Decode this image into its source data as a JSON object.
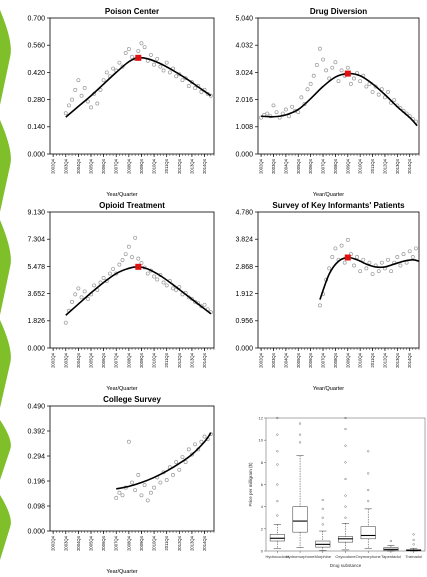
{
  "colors": {
    "point": "#9a9a9a",
    "curve": "#000000",
    "peak": "#e01010",
    "left_bar": "#7fbf2a",
    "box_fill": "#ffffff"
  },
  "x_ticks": [
    "2002Q4",
    "2003Q4",
    "2004Q4",
    "2005Q4",
    "2006Q4",
    "2007Q4",
    "2008Q4",
    "2009Q4",
    "2010Q4",
    "2011Q4",
    "2012Q4",
    "2013Q4",
    "2014Q4",
    "2015Q4"
  ],
  "chart_data": [
    {
      "id": "poison",
      "type": "scatter",
      "title": "Poison Center",
      "xlabel": "Year/Quarter",
      "yticks": [
        "0.000",
        "0.140",
        "0.280",
        "0.420",
        "0.560",
        "0.700"
      ],
      "ylim": [
        0,
        0.7
      ],
      "x_range": [
        2002.75,
        2015.75
      ],
      "points": [
        [
          2004.0,
          0.21
        ],
        [
          2004.25,
          0.25
        ],
        [
          2004.5,
          0.28
        ],
        [
          2004.75,
          0.33
        ],
        [
          2005.0,
          0.38
        ],
        [
          2005.25,
          0.3
        ],
        [
          2005.5,
          0.34
        ],
        [
          2005.75,
          0.27
        ],
        [
          2006.0,
          0.24
        ],
        [
          2006.25,
          0.31
        ],
        [
          2006.5,
          0.26
        ],
        [
          2006.75,
          0.33
        ],
        [
          2007.0,
          0.38
        ],
        [
          2007.25,
          0.42
        ],
        [
          2007.5,
          0.4
        ],
        [
          2007.75,
          0.44
        ],
        [
          2008.0,
          0.43
        ],
        [
          2008.25,
          0.47
        ],
        [
          2008.5,
          0.45
        ],
        [
          2008.75,
          0.52
        ],
        [
          2009.0,
          0.54
        ],
        [
          2009.25,
          0.5
        ],
        [
          2009.5,
          0.49
        ],
        [
          2009.75,
          0.53
        ],
        [
          2010.0,
          0.57
        ],
        [
          2010.25,
          0.55
        ],
        [
          2010.5,
          0.48
        ],
        [
          2010.75,
          0.51
        ],
        [
          2011.0,
          0.46
        ],
        [
          2011.25,
          0.49
        ],
        [
          2011.5,
          0.45
        ],
        [
          2011.75,
          0.43
        ],
        [
          2012.0,
          0.47
        ],
        [
          2012.25,
          0.42
        ],
        [
          2012.5,
          0.44
        ],
        [
          2012.75,
          0.4
        ],
        [
          2013.0,
          0.41
        ],
        [
          2013.25,
          0.38
        ],
        [
          2013.5,
          0.39
        ],
        [
          2013.75,
          0.35
        ],
        [
          2014.0,
          0.37
        ],
        [
          2014.25,
          0.34
        ],
        [
          2014.5,
          0.35
        ],
        [
          2014.75,
          0.32
        ],
        [
          2015.0,
          0.33
        ],
        [
          2015.25,
          0.31
        ],
        [
          2015.5,
          0.3
        ]
      ],
      "fit": [
        [
          2004.0,
          0.19
        ],
        [
          2005.0,
          0.245
        ],
        [
          2006.0,
          0.3
        ],
        [
          2007.0,
          0.36
        ],
        [
          2008.0,
          0.42
        ],
        [
          2009.0,
          0.475
        ],
        [
          2009.75,
          0.495
        ],
        [
          2010.5,
          0.49
        ],
        [
          2011.5,
          0.465
        ],
        [
          2012.5,
          0.43
        ],
        [
          2013.5,
          0.39
        ],
        [
          2014.5,
          0.345
        ],
        [
          2015.5,
          0.3
        ]
      ],
      "peak": [
        2009.75,
        0.495
      ]
    },
    {
      "id": "diversion",
      "type": "scatter",
      "title": "Drug Diversion",
      "xlabel": "Year/Quarter",
      "yticks": [
        "0.000",
        "1.008",
        "2.016",
        "3.024",
        "4.032",
        "5.040"
      ],
      "ylim": [
        0,
        5.04
      ],
      "x_range": [
        2002.75,
        2015.75
      ],
      "points": [
        [
          2003.0,
          1.35
        ],
        [
          2003.25,
          1.45
        ],
        [
          2003.5,
          1.5
        ],
        [
          2003.75,
          1.4
        ],
        [
          2004.0,
          1.8
        ],
        [
          2004.25,
          1.55
        ],
        [
          2004.5,
          1.35
        ],
        [
          2004.75,
          1.5
        ],
        [
          2005.0,
          1.65
        ],
        [
          2005.25,
          1.4
        ],
        [
          2005.5,
          1.75
        ],
        [
          2005.75,
          1.6
        ],
        [
          2006.0,
          1.55
        ],
        [
          2006.25,
          2.1
        ],
        [
          2006.5,
          1.85
        ],
        [
          2006.75,
          2.4
        ],
        [
          2007.0,
          2.6
        ],
        [
          2007.25,
          2.9
        ],
        [
          2007.5,
          3.3
        ],
        [
          2007.75,
          3.9
        ],
        [
          2008.0,
          3.5
        ],
        [
          2008.25,
          3.1
        ],
        [
          2008.5,
          2.8
        ],
        [
          2008.75,
          3.2
        ],
        [
          2009.0,
          3.4
        ],
        [
          2009.25,
          2.7
        ],
        [
          2009.5,
          3.1
        ],
        [
          2009.75,
          2.9
        ],
        [
          2010.0,
          3.2
        ],
        [
          2010.25,
          2.6
        ],
        [
          2010.5,
          2.8
        ],
        [
          2010.75,
          3.0
        ],
        [
          2011.0,
          2.7
        ],
        [
          2011.25,
          2.9
        ],
        [
          2011.5,
          2.5
        ],
        [
          2011.75,
          2.6
        ],
        [
          2012.0,
          2.3
        ],
        [
          2012.25,
          2.5
        ],
        [
          2012.5,
          2.2
        ],
        [
          2012.75,
          2.4
        ],
        [
          2013.0,
          2.1
        ],
        [
          2013.25,
          2.3
        ],
        [
          2013.5,
          1.9
        ],
        [
          2013.75,
          2.0
        ],
        [
          2014.0,
          1.8
        ],
        [
          2014.25,
          1.7
        ],
        [
          2014.5,
          1.6
        ],
        [
          2014.75,
          1.5
        ],
        [
          2015.0,
          1.4
        ],
        [
          2015.25,
          1.3
        ],
        [
          2015.5,
          1.2
        ]
      ],
      "fit": [
        [
          2003.0,
          1.4
        ],
        [
          2004.0,
          1.38
        ],
        [
          2005.0,
          1.45
        ],
        [
          2006.0,
          1.65
        ],
        [
          2007.0,
          2.05
        ],
        [
          2008.0,
          2.5
        ],
        [
          2009.0,
          2.85
        ],
        [
          2010.0,
          2.98
        ],
        [
          2011.0,
          2.9
        ],
        [
          2012.0,
          2.6
        ],
        [
          2013.0,
          2.2
        ],
        [
          2014.0,
          1.75
        ],
        [
          2015.0,
          1.35
        ],
        [
          2015.6,
          1.05
        ]
      ],
      "peak": [
        2010.0,
        2.98
      ]
    },
    {
      "id": "opioid",
      "type": "scatter",
      "title": "Opioid Treatment",
      "xlabel": "Year/Quarter",
      "yticks": [
        "0.000",
        "1.826",
        "3.652",
        "5.478",
        "7.304",
        "9.130"
      ],
      "ylim": [
        0,
        9.13
      ],
      "x_range": [
        2002.75,
        2015.75
      ],
      "points": [
        [
          2004.0,
          1.7
        ],
        [
          2004.25,
          2.5
        ],
        [
          2004.5,
          3.1
        ],
        [
          2004.75,
          3.6
        ],
        [
          2005.0,
          4.0
        ],
        [
          2005.25,
          3.4
        ],
        [
          2005.5,
          3.8
        ],
        [
          2005.75,
          3.3
        ],
        [
          2006.0,
          3.6
        ],
        [
          2006.25,
          4.2
        ],
        [
          2006.5,
          3.9
        ],
        [
          2006.75,
          4.4
        ],
        [
          2007.0,
          4.7
        ],
        [
          2007.25,
          4.5
        ],
        [
          2007.5,
          5.0
        ],
        [
          2007.75,
          5.3
        ],
        [
          2008.0,
          5.0
        ],
        [
          2008.25,
          5.6
        ],
        [
          2008.5,
          5.9
        ],
        [
          2008.75,
          6.3
        ],
        [
          2009.0,
          6.8
        ],
        [
          2009.25,
          6.1
        ],
        [
          2009.5,
          7.4
        ],
        [
          2009.75,
          6.0
        ],
        [
          2010.0,
          5.7
        ],
        [
          2010.25,
          5.4
        ],
        [
          2010.5,
          5.0
        ],
        [
          2010.75,
          5.2
        ],
        [
          2011.0,
          4.8
        ],
        [
          2011.25,
          4.6
        ],
        [
          2011.5,
          4.9
        ],
        [
          2011.75,
          4.4
        ],
        [
          2012.0,
          4.2
        ],
        [
          2012.25,
          4.5
        ],
        [
          2012.5,
          4.0
        ],
        [
          2012.75,
          3.9
        ],
        [
          2013.0,
          4.1
        ],
        [
          2013.25,
          3.6
        ],
        [
          2013.5,
          3.7
        ],
        [
          2013.75,
          3.4
        ],
        [
          2014.0,
          3.3
        ],
        [
          2014.25,
          3.1
        ],
        [
          2014.5,
          3.0
        ],
        [
          2014.75,
          2.8
        ],
        [
          2015.0,
          2.9
        ],
        [
          2015.25,
          2.6
        ],
        [
          2015.5,
          2.4
        ]
      ],
      "fit": [
        [
          2004.0,
          2.2
        ],
        [
          2005.0,
          2.95
        ],
        [
          2006.0,
          3.7
        ],
        [
          2007.0,
          4.4
        ],
        [
          2008.0,
          5.0
        ],
        [
          2009.0,
          5.35
        ],
        [
          2009.75,
          5.45
        ],
        [
          2010.5,
          5.3
        ],
        [
          2011.5,
          4.85
        ],
        [
          2012.5,
          4.25
        ],
        [
          2013.5,
          3.6
        ],
        [
          2014.5,
          2.95
        ],
        [
          2015.5,
          2.3
        ]
      ],
      "peak": [
        2009.75,
        5.45
      ]
    },
    {
      "id": "informants",
      "type": "scatter",
      "title": "Survey of Key Informants' Patients",
      "xlabel": "Year/Quarter",
      "yticks": [
        "0.000",
        "0.956",
        "1.912",
        "2.868",
        "3.824",
        "4.780"
      ],
      "ylim": [
        0,
        4.78
      ],
      "x_range": [
        2002.75,
        2015.75
      ],
      "points": [
        [
          2007.75,
          1.5
        ],
        [
          2008.0,
          1.9
        ],
        [
          2008.25,
          2.4
        ],
        [
          2008.5,
          2.8
        ],
        [
          2008.75,
          3.2
        ],
        [
          2009.0,
          3.5
        ],
        [
          2009.25,
          3.1
        ],
        [
          2009.5,
          3.6
        ],
        [
          2009.75,
          3.0
        ],
        [
          2010.0,
          3.8
        ],
        [
          2010.25,
          3.3
        ],
        [
          2010.5,
          2.9
        ],
        [
          2010.75,
          3.2
        ],
        [
          2011.0,
          2.7
        ],
        [
          2011.25,
          3.1
        ],
        [
          2011.5,
          2.8
        ],
        [
          2011.75,
          3.0
        ],
        [
          2012.0,
          2.6
        ],
        [
          2012.25,
          2.9
        ],
        [
          2012.5,
          2.7
        ],
        [
          2012.75,
          3.0
        ],
        [
          2013.0,
          2.8
        ],
        [
          2013.25,
          3.1
        ],
        [
          2013.5,
          2.7
        ],
        [
          2013.75,
          3.0
        ],
        [
          2014.0,
          3.2
        ],
        [
          2014.25,
          2.9
        ],
        [
          2014.5,
          3.3
        ],
        [
          2014.75,
          3.0
        ],
        [
          2015.0,
          3.4
        ],
        [
          2015.25,
          3.2
        ],
        [
          2015.5,
          3.5
        ]
      ],
      "fit": [
        [
          2007.75,
          1.7
        ],
        [
          2008.5,
          2.6
        ],
        [
          2009.25,
          3.05
        ],
        [
          2010.0,
          3.18
        ],
        [
          2010.75,
          3.1
        ],
        [
          2011.5,
          2.95
        ],
        [
          2012.25,
          2.85
        ],
        [
          2013.0,
          2.85
        ],
        [
          2013.75,
          2.95
        ],
        [
          2014.5,
          3.05
        ],
        [
          2015.25,
          3.1
        ],
        [
          2015.75,
          3.05
        ]
      ],
      "peak": [
        2010.0,
        3.18
      ]
    },
    {
      "id": "college",
      "type": "scatter",
      "title": "College Survey",
      "xlabel": "Year/Quarter",
      "yticks": [
        "0.000",
        "0.098",
        "0.196",
        "0.294",
        "0.392",
        "0.490"
      ],
      "ylim": [
        0,
        0.49
      ],
      "x_range": [
        2002.75,
        2015.75
      ],
      "points": [
        [
          2008.0,
          0.13
        ],
        [
          2008.25,
          0.15
        ],
        [
          2008.5,
          0.14
        ],
        [
          2008.75,
          0.17
        ],
        [
          2009.0,
          0.35
        ],
        [
          2009.25,
          0.19
        ],
        [
          2009.5,
          0.16
        ],
        [
          2009.75,
          0.22
        ],
        [
          2010.0,
          0.14
        ],
        [
          2010.25,
          0.18
        ],
        [
          2010.5,
          0.12
        ],
        [
          2010.75,
          0.15
        ],
        [
          2011.0,
          0.17
        ],
        [
          2011.25,
          0.21
        ],
        [
          2011.5,
          0.19
        ],
        [
          2011.75,
          0.23
        ],
        [
          2012.0,
          0.2
        ],
        [
          2012.25,
          0.25
        ],
        [
          2012.5,
          0.22
        ],
        [
          2012.75,
          0.27
        ],
        [
          2013.0,
          0.24
        ],
        [
          2013.25,
          0.29
        ],
        [
          2013.5,
          0.27
        ],
        [
          2013.75,
          0.32
        ],
        [
          2014.0,
          0.3
        ],
        [
          2014.25,
          0.34
        ],
        [
          2014.5,
          0.32
        ],
        [
          2014.75,
          0.35
        ],
        [
          2015.0,
          0.37
        ],
        [
          2015.25,
          0.36
        ],
        [
          2015.5,
          0.38
        ]
      ],
      "fit": [
        [
          2008.0,
          0.165
        ],
        [
          2009.0,
          0.175
        ],
        [
          2010.0,
          0.19
        ],
        [
          2011.0,
          0.21
        ],
        [
          2012.0,
          0.235
        ],
        [
          2013.0,
          0.265
        ],
        [
          2014.0,
          0.3
        ],
        [
          2015.0,
          0.35
        ],
        [
          2015.5,
          0.385
        ]
      ],
      "peak": null
    },
    {
      "id": "boxplot",
      "type": "box",
      "xlabel": "Drug substance",
      "ylabel": "Price per milligram ($)",
      "yticks": [
        "0",
        "2",
        "4",
        "6",
        "8",
        "10",
        "12"
      ],
      "ylim": [
        0,
        12
      ],
      "categories": [
        "Hydrocodone",
        "Hydromorphone",
        "Morphine",
        "Oxycodone",
        "Oxymorphone",
        "Tapentadol",
        "Tramadol"
      ],
      "boxes": [
        {
          "q1": 0.9,
          "med": 1.15,
          "q3": 1.5,
          "lo": 0.2,
          "hi": 2.4,
          "out": [
            3.2,
            4.5,
            6.0,
            7.8,
            9.0,
            10.5,
            12.0
          ]
        },
        {
          "q1": 1.7,
          "med": 2.7,
          "q3": 4.0,
          "lo": 0.3,
          "hi": 8.6,
          "out": [
            9.8,
            10.5,
            11.5
          ]
        },
        {
          "q1": 0.35,
          "med": 0.6,
          "q3": 0.9,
          "lo": 0.05,
          "hi": 1.8,
          "out": [
            2.4,
            3.0,
            3.8,
            4.6
          ]
        },
        {
          "q1": 0.8,
          "med": 1.1,
          "q3": 1.3,
          "lo": 0.1,
          "hi": 2.5,
          "out": [
            3.0,
            4.0,
            5.0,
            6.5,
            8.0,
            9.5,
            11.0,
            12.0
          ]
        },
        {
          "q1": 1.1,
          "med": 1.4,
          "q3": 2.2,
          "lo": 0.2,
          "hi": 3.8,
          "out": [
            4.5,
            5.5,
            7.0,
            9.0
          ]
        },
        {
          "q1": 0.05,
          "med": 0.15,
          "q3": 0.3,
          "lo": 0.0,
          "hi": 0.5,
          "out": [
            0.9
          ]
        },
        {
          "q1": 0.02,
          "med": 0.06,
          "q3": 0.12,
          "lo": 0.0,
          "hi": 0.25,
          "out": [
            0.6,
            1.0,
            1.5
          ]
        }
      ]
    }
  ]
}
